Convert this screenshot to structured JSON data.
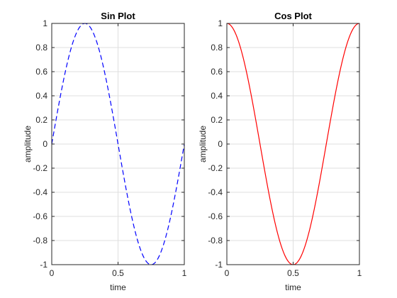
{
  "chart_data": [
    {
      "type": "line",
      "title": "Sin Plot",
      "xlabel": "time",
      "ylabel": "amplitude",
      "xlim": [
        0,
        1
      ],
      "ylim": [
        -1,
        1
      ],
      "xticks": [
        0,
        0.5,
        1
      ],
      "xtick_labels": [
        "0",
        "0.5",
        "1"
      ],
      "yticks": [
        -1,
        -0.8,
        -0.6,
        -0.4,
        -0.2,
        0,
        0.2,
        0.4,
        0.6,
        0.8,
        1
      ],
      "ytick_labels": [
        "-1",
        "-0.8",
        "-0.6",
        "-0.4",
        "-0.2",
        "0",
        "0.2",
        "0.4",
        "0.6",
        "0.8",
        "1"
      ],
      "grid": true,
      "series": [
        {
          "function": "sin(2*pi*t)",
          "color": "#0000ff",
          "line_style": "dashed",
          "x": [
            0,
            0.05,
            0.1,
            0.15,
            0.2,
            0.25,
            0.3,
            0.35,
            0.4,
            0.45,
            0.5,
            0.55,
            0.6,
            0.65,
            0.7,
            0.75,
            0.8,
            0.85,
            0.9,
            0.95,
            1
          ],
          "y": [
            0,
            0.309,
            0.588,
            0.809,
            0.951,
            1,
            0.951,
            0.809,
            0.588,
            0.309,
            0,
            -0.309,
            -0.588,
            -0.809,
            -0.951,
            -1,
            -0.951,
            -0.809,
            -0.588,
            -0.309,
            0
          ]
        }
      ]
    },
    {
      "type": "line",
      "title": "Cos Plot",
      "xlabel": "time",
      "ylabel": "amplitude",
      "xlim": [
        0,
        1
      ],
      "ylim": [
        -1,
        1
      ],
      "xticks": [
        0,
        0.5,
        1
      ],
      "xtick_labels": [
        "0",
        "0.5",
        "1"
      ],
      "yticks": [
        -1,
        -0.8,
        -0.6,
        -0.4,
        -0.2,
        0,
        0.2,
        0.4,
        0.6,
        0.8,
        1
      ],
      "ytick_labels": [
        "-1",
        "-0.8",
        "-0.6",
        "-0.4",
        "-0.2",
        "0",
        "0.2",
        "0.4",
        "0.6",
        "0.8",
        "1"
      ],
      "grid": true,
      "series": [
        {
          "function": "cos(2*pi*t)",
          "color": "#ff0000",
          "line_style": "solid",
          "x": [
            0,
            0.05,
            0.1,
            0.15,
            0.2,
            0.25,
            0.3,
            0.35,
            0.4,
            0.45,
            0.5,
            0.55,
            0.6,
            0.65,
            0.7,
            0.75,
            0.8,
            0.85,
            0.9,
            0.95,
            1
          ],
          "y": [
            1,
            0.951,
            0.809,
            0.588,
            0.309,
            0,
            -0.309,
            -0.588,
            -0.809,
            -0.951,
            -1,
            -0.951,
            -0.809,
            -0.588,
            -0.309,
            0,
            0.309,
            0.588,
            0.809,
            0.951,
            1
          ]
        }
      ]
    }
  ]
}
